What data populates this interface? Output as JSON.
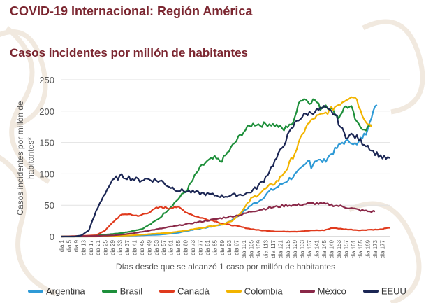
{
  "header": {
    "title": "COVID-19 Internacional: Región América",
    "subtitle": "Casos incidentes por millón de habitantes"
  },
  "colors": {
    "title": "#7b2630",
    "watermark": "#f1e9df",
    "axis_text": "#555555",
    "grid": "#e2e2e2"
  },
  "chart_data": {
    "type": "line",
    "title": "Casos incidentes por millón de habitantes",
    "xlabel": "Días desde que se alcanzó 1 caso por millón de habitantes",
    "ylabel_lines": [
      "Casos incidentes por millón de",
      "habitantes*"
    ],
    "ylim": [
      0,
      250
    ],
    "yticks": [
      0,
      50,
      100,
      150,
      200,
      250
    ],
    "xlim": [
      1,
      181
    ],
    "xtick_labels": [
      "dia 1",
      "dia 5",
      "dia 9",
      "dia 13",
      "dia 17",
      "dia 21",
      "dia 25",
      "dia 29",
      "dia 33",
      "dia 37",
      "dia 41",
      "dia 45",
      "dia 49",
      "dia 53",
      "dia 57",
      "dia 61",
      "dia 65",
      "dia 69",
      "dia 73",
      "dia 77",
      "dia 81",
      "dia 85",
      "dia 89",
      "dia 93",
      "dia 97",
      "dia 101",
      "dia 105",
      "dia 109",
      "dia 113",
      "dia 117",
      "dia 121",
      "dia 125",
      "dia 129",
      "dia 133",
      "dia 137",
      "dia 141",
      "dia 145",
      "dia 149",
      "dia 153",
      "dia 157",
      "dia 161",
      "dia 165",
      "dia 169",
      "dia 173",
      "dia 177"
    ],
    "grid": true,
    "legend_position": "bottom",
    "series": [
      {
        "name": "Argentina",
        "color": "#2e9ad6",
        "points": [
          [
            1,
            0
          ],
          [
            15,
            0
          ],
          [
            30,
            1
          ],
          [
            45,
            2
          ],
          [
            55,
            3
          ],
          [
            65,
            6
          ],
          [
            75,
            12
          ],
          [
            80,
            14
          ],
          [
            85,
            17
          ],
          [
            90,
            20
          ],
          [
            95,
            27
          ],
          [
            100,
            38
          ],
          [
            105,
            50
          ],
          [
            110,
            58
          ],
          [
            115,
            72
          ],
          [
            120,
            80
          ],
          [
            125,
            90
          ],
          [
            130,
            100
          ],
          [
            135,
            115
          ],
          [
            137,
            125
          ],
          [
            138,
            110
          ],
          [
            140,
            122
          ],
          [
            145,
            120
          ],
          [
            150,
            135
          ],
          [
            155,
            150
          ],
          [
            160,
            152
          ],
          [
            163,
            145
          ],
          [
            165,
            155
          ],
          [
            168,
            165
          ],
          [
            170,
            185
          ],
          [
            172,
            200
          ],
          [
            174,
            210
          ]
        ]
      },
      {
        "name": "Brasil",
        "color": "#1d8f3a",
        "points": [
          [
            1,
            0
          ],
          [
            15,
            1
          ],
          [
            25,
            3
          ],
          [
            35,
            6
          ],
          [
            45,
            12
          ],
          [
            50,
            20
          ],
          [
            55,
            30
          ],
          [
            60,
            45
          ],
          [
            65,
            60
          ],
          [
            70,
            75
          ],
          [
            73,
            90
          ],
          [
            76,
            105
          ],
          [
            80,
            118
          ],
          [
            85,
            125
          ],
          [
            88,
            120
          ],
          [
            90,
            125
          ],
          [
            95,
            145
          ],
          [
            100,
            165
          ],
          [
            105,
            178
          ],
          [
            108,
            180
          ],
          [
            110,
            178
          ],
          [
            115,
            180
          ],
          [
            120,
            176
          ],
          [
            123,
            170
          ],
          [
            126,
            180
          ],
          [
            128,
            178
          ],
          [
            131,
            215
          ],
          [
            134,
            220
          ],
          [
            137,
            215
          ],
          [
            140,
            218
          ],
          [
            143,
            205
          ],
          [
            146,
            210
          ],
          [
            150,
            200
          ],
          [
            153,
            190
          ],
          [
            155,
            200
          ],
          [
            157,
            208
          ],
          [
            160,
            205
          ],
          [
            163,
            180
          ],
          [
            165,
            175
          ],
          [
            168,
            172
          ],
          [
            171,
            178
          ]
        ]
      },
      {
        "name": "Canadá",
        "color": "#e03a1d",
        "points": [
          [
            1,
            0
          ],
          [
            20,
            2
          ],
          [
            25,
            10
          ],
          [
            30,
            25
          ],
          [
            33,
            33
          ],
          [
            36,
            36
          ],
          [
            40,
            35
          ],
          [
            43,
            32
          ],
          [
            46,
            36
          ],
          [
            50,
            40
          ],
          [
            53,
            45
          ],
          [
            56,
            47
          ],
          [
            60,
            45
          ],
          [
            63,
            48
          ],
          [
            66,
            45
          ],
          [
            70,
            38
          ],
          [
            75,
            32
          ],
          [
            80,
            28
          ],
          [
            85,
            25
          ],
          [
            90,
            20
          ],
          [
            95,
            18
          ],
          [
            100,
            15
          ],
          [
            105,
            12
          ],
          [
            110,
            10
          ],
          [
            120,
            8
          ],
          [
            130,
            8
          ],
          [
            140,
            10
          ],
          [
            145,
            10
          ],
          [
            150,
            14
          ],
          [
            155,
            12
          ],
          [
            160,
            11
          ],
          [
            165,
            10
          ],
          [
            170,
            11
          ],
          [
            175,
            11
          ],
          [
            181,
            14
          ]
        ]
      },
      {
        "name": "Colombia",
        "color": "#f2b400",
        "points": [
          [
            1,
            0
          ],
          [
            20,
            0
          ],
          [
            30,
            1
          ],
          [
            40,
            2
          ],
          [
            50,
            4
          ],
          [
            60,
            6
          ],
          [
            70,
            10
          ],
          [
            80,
            15
          ],
          [
            90,
            20
          ],
          [
            95,
            26
          ],
          [
            100,
            40
          ],
          [
            105,
            60
          ],
          [
            110,
            70
          ],
          [
            115,
            80
          ],
          [
            120,
            90
          ],
          [
            125,
            110
          ],
          [
            130,
            140
          ],
          [
            135,
            175
          ],
          [
            140,
            190
          ],
          [
            145,
            195
          ],
          [
            150,
            205
          ],
          [
            155,
            215
          ],
          [
            160,
            225
          ],
          [
            163,
            220
          ],
          [
            165,
            200
          ],
          [
            168,
            185
          ],
          [
            171,
            175
          ]
        ]
      },
      {
        "name": "México",
        "color": "#8a2848",
        "points": [
          [
            1,
            0
          ],
          [
            20,
            1
          ],
          [
            30,
            2
          ],
          [
            40,
            5
          ],
          [
            50,
            10
          ],
          [
            60,
            15
          ],
          [
            70,
            20
          ],
          [
            80,
            25
          ],
          [
            90,
            30
          ],
          [
            100,
            35
          ],
          [
            105,
            40
          ],
          [
            110,
            43
          ],
          [
            115,
            46
          ],
          [
            120,
            48
          ],
          [
            125,
            50
          ],
          [
            130,
            50
          ],
          [
            135,
            52
          ],
          [
            140,
            53
          ],
          [
            145,
            52
          ],
          [
            150,
            50
          ],
          [
            155,
            48
          ],
          [
            160,
            45
          ],
          [
            165,
            42
          ],
          [
            170,
            40
          ],
          [
            173,
            40
          ]
        ]
      },
      {
        "name": "EEUU",
        "color": "#1b2654",
        "points": [
          [
            1,
            0
          ],
          [
            8,
            0
          ],
          [
            12,
            2
          ],
          [
            16,
            10
          ],
          [
            20,
            40
          ],
          [
            24,
            65
          ],
          [
            28,
            85
          ],
          [
            31,
            93
          ],
          [
            34,
            96
          ],
          [
            37,
            95
          ],
          [
            40,
            92
          ],
          [
            44,
            90
          ],
          [
            48,
            92
          ],
          [
            52,
            90
          ],
          [
            56,
            88
          ],
          [
            60,
            80
          ],
          [
            65,
            74
          ],
          [
            70,
            72
          ],
          [
            75,
            70
          ],
          [
            80,
            68
          ],
          [
            85,
            66
          ],
          [
            90,
            64
          ],
          [
            95,
            66
          ],
          [
            100,
            67
          ],
          [
            104,
            70
          ],
          [
            108,
            78
          ],
          [
            112,
            90
          ],
          [
            116,
            110
          ],
          [
            120,
            130
          ],
          [
            125,
            160
          ],
          [
            130,
            185
          ],
          [
            135,
            195
          ],
          [
            140,
            200
          ],
          [
            145,
            205
          ],
          [
            148,
            200
          ],
          [
            151,
            195
          ],
          [
            154,
            175
          ],
          [
            157,
            160
          ],
          [
            160,
            162
          ],
          [
            163,
            158
          ],
          [
            166,
            150
          ],
          [
            169,
            145
          ],
          [
            172,
            135
          ],
          [
            175,
            130
          ],
          [
            178,
            125
          ],
          [
            181,
            125
          ]
        ]
      }
    ]
  }
}
